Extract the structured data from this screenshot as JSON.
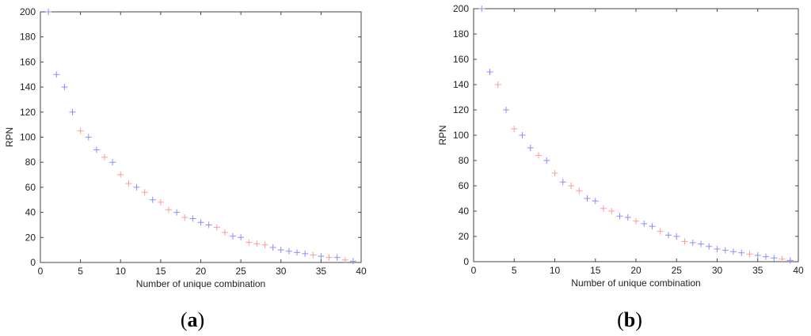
{
  "panels": [
    {
      "label_open": "(",
      "label_letter": "a",
      "label_close": ")"
    },
    {
      "label_open": "(",
      "label_letter": "b",
      "label_close": ")"
    }
  ],
  "chart_data": [
    {
      "type": "scatter",
      "xlabel": "Number of unique combination",
      "ylabel": "RPN",
      "xlim": [
        0,
        40
      ],
      "ylim": [
        0,
        200
      ],
      "xticks": [
        0,
        5,
        10,
        15,
        20,
        25,
        30,
        35,
        40
      ],
      "yticks": [
        0,
        20,
        40,
        60,
        80,
        100,
        120,
        140,
        160,
        180,
        200
      ],
      "grid": false,
      "marker": "+",
      "series": [
        {
          "color": "#8c8cff",
          "x": [
            1,
            2,
            3,
            4,
            6,
            7,
            9,
            12,
            14,
            17,
            19,
            20,
            21,
            24,
            25,
            29,
            30,
            31,
            32,
            33,
            35,
            37,
            39
          ],
          "y": [
            200,
            150,
            140,
            120,
            100,
            90,
            80,
            60,
            50,
            40,
            35,
            32,
            30,
            21,
            20,
            12,
            10,
            9,
            8,
            7,
            5,
            4,
            1
          ]
        },
        {
          "color": "#ff9a9a",
          "x": [
            5,
            8,
            10,
            11,
            13,
            15,
            16,
            18,
            22,
            23,
            26,
            27,
            28,
            34,
            36,
            38
          ],
          "y": [
            105,
            84,
            70,
            63,
            56,
            48,
            42,
            36,
            28,
            24,
            16,
            15,
            14,
            6,
            4,
            2
          ]
        }
      ]
    },
    {
      "type": "scatter",
      "xlabel": "Number of unique combination",
      "ylabel": "RPN",
      "xlim": [
        0,
        40
      ],
      "ylim": [
        0,
        200
      ],
      "xticks": [
        0,
        5,
        10,
        15,
        20,
        25,
        30,
        35,
        40
      ],
      "yticks": [
        0,
        20,
        40,
        60,
        80,
        100,
        120,
        140,
        160,
        180,
        200
      ],
      "grid": false,
      "marker": "+",
      "series": [
        {
          "color": "#8c8cff",
          "x": [
            1,
            2,
            4,
            6,
            7,
            9,
            11,
            14,
            15,
            18,
            19,
            21,
            22,
            24,
            25,
            27,
            28,
            29,
            30,
            31,
            32,
            33,
            35,
            36,
            37,
            39
          ],
          "y": [
            200,
            150,
            120,
            100,
            90,
            80,
            63,
            50,
            48,
            36,
            35,
            30,
            28,
            21,
            20,
            15,
            14,
            12,
            10,
            9,
            8,
            7,
            5,
            4,
            3,
            1
          ]
        },
        {
          "color": "#ff9a9a",
          "x": [
            3,
            5,
            8,
            10,
            12,
            13,
            16,
            17,
            20,
            23,
            26,
            34,
            38
          ],
          "y": [
            140,
            105,
            84,
            70,
            60,
            56,
            42,
            40,
            32,
            24,
            16,
            6,
            2
          ]
        }
      ]
    }
  ]
}
